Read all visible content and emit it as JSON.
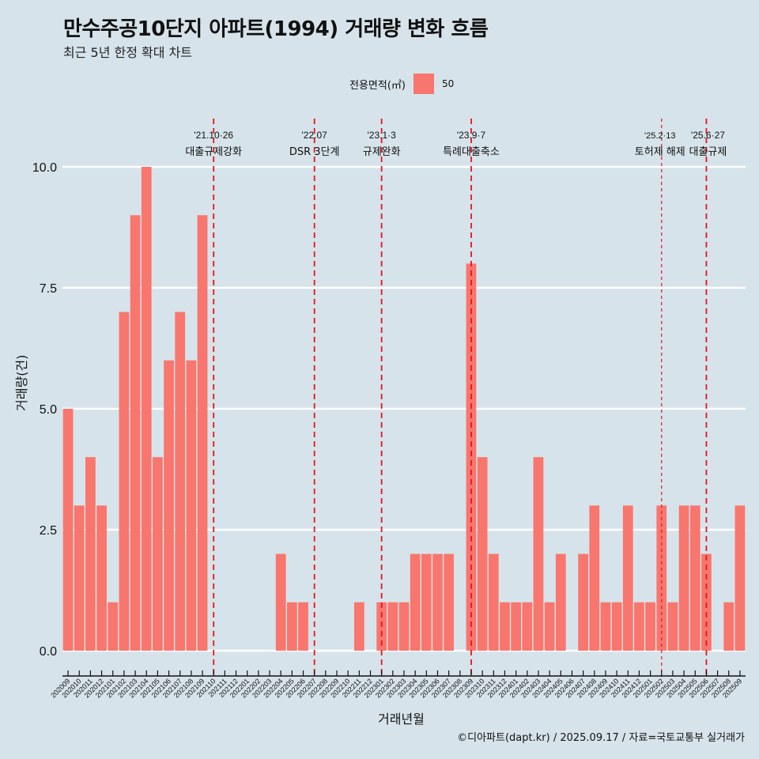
{
  "chart_data": {
    "type": "bar",
    "title": "만수주공10단지 아파트(1994) 거래량 변화 흐름",
    "subtitle": "최근 5년 한정 확대 차트",
    "xlabel": "거래년월",
    "ylabel": "거래량(건)",
    "ylim": [
      0,
      10
    ],
    "yticks": [
      "0.0",
      "2.5",
      "5.0",
      "7.5",
      "10.0"
    ],
    "grid": true,
    "legend": {
      "title": "전용면적(㎡)",
      "entries": [
        "50"
      ],
      "placement": "top-center"
    },
    "colors": {
      "bar": "#f8766d",
      "event_line": "#e8141c",
      "grid": "#ffffff",
      "background": "#d6e3ea"
    },
    "categories": [
      "202009",
      "202010",
      "202011",
      "202012",
      "202101",
      "202102",
      "202103",
      "202104",
      "202105",
      "202106",
      "202107",
      "202108",
      "202109",
      "202110",
      "202111",
      "202112",
      "202201",
      "202202",
      "202203",
      "202204",
      "202205",
      "202206",
      "202207",
      "202208",
      "202209",
      "202210",
      "202211",
      "202212",
      "202301",
      "202302",
      "202303",
      "202304",
      "202305",
      "202306",
      "202307",
      "202308",
      "202309",
      "202310",
      "202311",
      "202312",
      "202401",
      "202402",
      "202403",
      "202404",
      "202405",
      "202406",
      "202407",
      "202408",
      "202409",
      "202410",
      "202411",
      "202412",
      "202501",
      "202502",
      "202503",
      "202504",
      "202505",
      "202506",
      "202507",
      "202508",
      "202509"
    ],
    "series": [
      {
        "name": "50",
        "values": [
          5,
          3,
          4,
          3,
          1,
          7,
          9,
          10,
          4,
          6,
          7,
          6,
          9,
          0,
          0,
          0,
          0,
          0,
          0,
          2,
          1,
          1,
          0,
          0,
          0,
          0,
          1,
          0,
          1,
          1,
          1,
          2,
          2,
          2,
          2,
          0,
          8,
          4,
          2,
          1,
          1,
          1,
          4,
          1,
          2,
          0,
          2,
          3,
          1,
          1,
          3,
          1,
          1,
          3,
          1,
          3,
          3,
          2,
          0,
          1,
          3
        ]
      }
    ],
    "annotations": [
      {
        "at": "202110",
        "date": "'21.10·26",
        "label": "대출규제강화",
        "style": "dashed"
      },
      {
        "at": "202207",
        "date": "'22.07",
        "label": "DSR 3단계",
        "style": "dashed"
      },
      {
        "at": "202301",
        "date": "'23.1·3",
        "label": "규제완화",
        "style": "dashed"
      },
      {
        "at": "202309",
        "date": "'23.9·7",
        "label": "특례대출축소",
        "style": "dashed"
      },
      {
        "at": "202502",
        "date": "'25.2·13",
        "label": "토허제 해제",
        "style": "dotted"
      },
      {
        "at": "202506",
        "date": "'25.6·27",
        "label": "대출규제",
        "style": "dashed"
      }
    ],
    "caption": "©디아파트(dapt.kr) / 2025.09.17 / 자료=국토교통부 실거래가"
  }
}
